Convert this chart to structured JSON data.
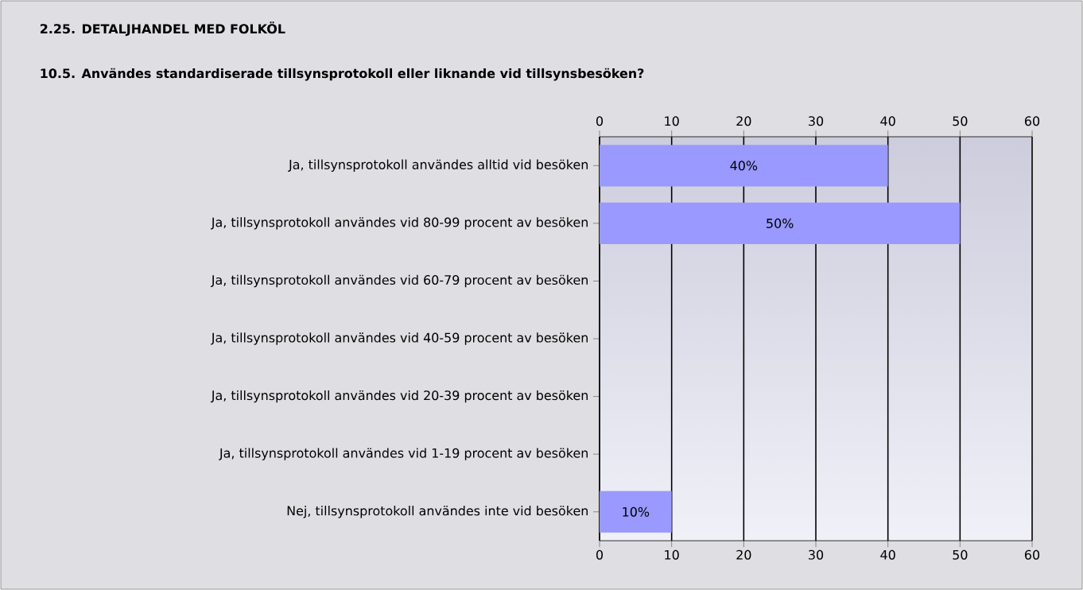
{
  "chart_data": {
    "type": "bar",
    "orientation": "horizontal",
    "title": "2.25. DETALJHANDEL MED FOLKÖL",
    "subtitle": "10.5. Användes standardiserade tillsynsprotokoll eller liknande vid tillsynsbesöken?",
    "categories": [
      "Ja, tillsynsprotokoll användes alltid vid besöken",
      "Ja, tillsynsprotokoll användes vid 80-99 procent av besöken",
      "Ja, tillsynsprotokoll användes vid 60-79 procent av besöken",
      "Ja, tillsynsprotokoll användes vid 40-59 procent av besöken",
      "Ja, tillsynsprotokoll användes vid 20-39 procent av besöken",
      "Ja, tillsynsprotokoll användes vid 1-19 procent av besöken",
      "Nej, tillsynsprotokoll användes inte vid besöken"
    ],
    "values": [
      40,
      50,
      0,
      0,
      0,
      0,
      10
    ],
    "value_labels": [
      "40%",
      "50%",
      null,
      null,
      null,
      null,
      "10%"
    ],
    "color": "#9999ff",
    "xlim": [
      0,
      60
    ],
    "xticks": [
      0,
      10,
      20,
      30,
      40,
      50,
      60
    ],
    "x2lim": [
      0,
      60
    ],
    "x2ticks": [
      0,
      10,
      20,
      30,
      40,
      50,
      60
    ],
    "grid": "x"
  }
}
